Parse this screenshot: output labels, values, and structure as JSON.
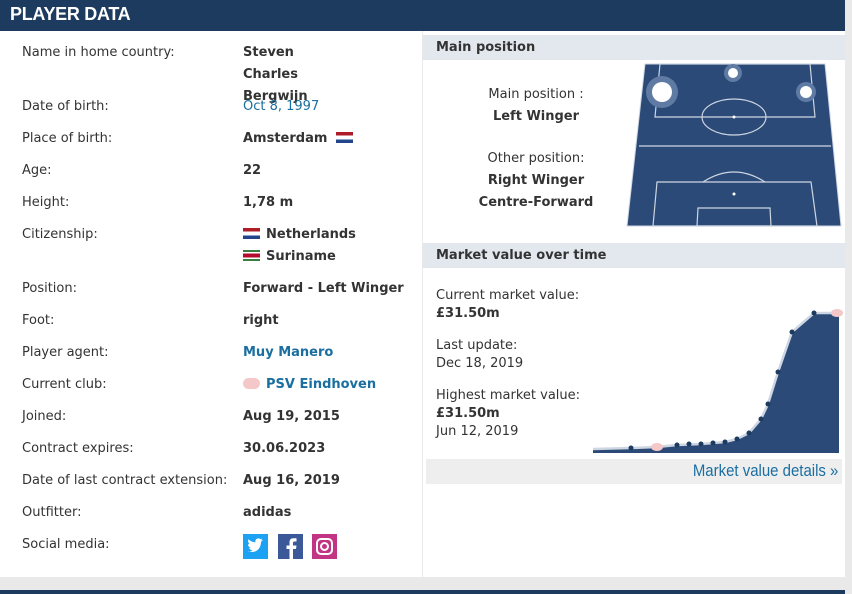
{
  "header": {
    "title": "PLAYER DATA"
  },
  "rows": [
    {
      "label": "Name in home country:",
      "values": [
        "Steven Charles Bergwijn"
      ]
    },
    {
      "label": "Date of birth:",
      "values": [
        "Oct 8, 1997"
      ]
    },
    {
      "label": "Place of birth:",
      "values": [
        "Amsterdam"
      ]
    },
    {
      "label": "Age:",
      "values": [
        "22"
      ]
    },
    {
      "label": "Height:",
      "values": [
        "1,78 m"
      ]
    },
    {
      "label": "Citizenship:",
      "values": [
        "Netherlands",
        "Suriname"
      ]
    },
    {
      "label": "Position:",
      "values": [
        "Forward - Left Winger"
      ]
    },
    {
      "label": "Foot:",
      "values": [
        "right"
      ]
    },
    {
      "label": "Player agent:",
      "values": [
        "Muy Manero"
      ]
    },
    {
      "label": "Current club:",
      "values": [
        "PSV Eindhoven"
      ]
    },
    {
      "label": "Joined:",
      "values": [
        "Aug 19, 2015"
      ]
    },
    {
      "label": "Contract expires:",
      "values": [
        "30.06.2023"
      ]
    },
    {
      "label": "Date of last contract extension:",
      "values": [
        "Aug 16, 2019"
      ]
    },
    {
      "label": "Outfitter:",
      "values": [
        "adidas"
      ]
    },
    {
      "label": "Social media:",
      "values": []
    }
  ],
  "main_position": {
    "heading": "Main position",
    "main_label": "Main position :",
    "main": "Left Winger",
    "other_label": "Other position:",
    "other": [
      "Right Winger",
      "Centre-Forward"
    ]
  },
  "market_value": {
    "heading": "Market value over time",
    "current_label": "Current market value:",
    "current": "£31.50m",
    "update_label": "Last update:",
    "update": "Dec 18, 2019",
    "highest_label": "Highest market value:",
    "highest": "£31.50m",
    "highest_date": "Jun 12, 2019",
    "link": "Market value details »"
  }
}
